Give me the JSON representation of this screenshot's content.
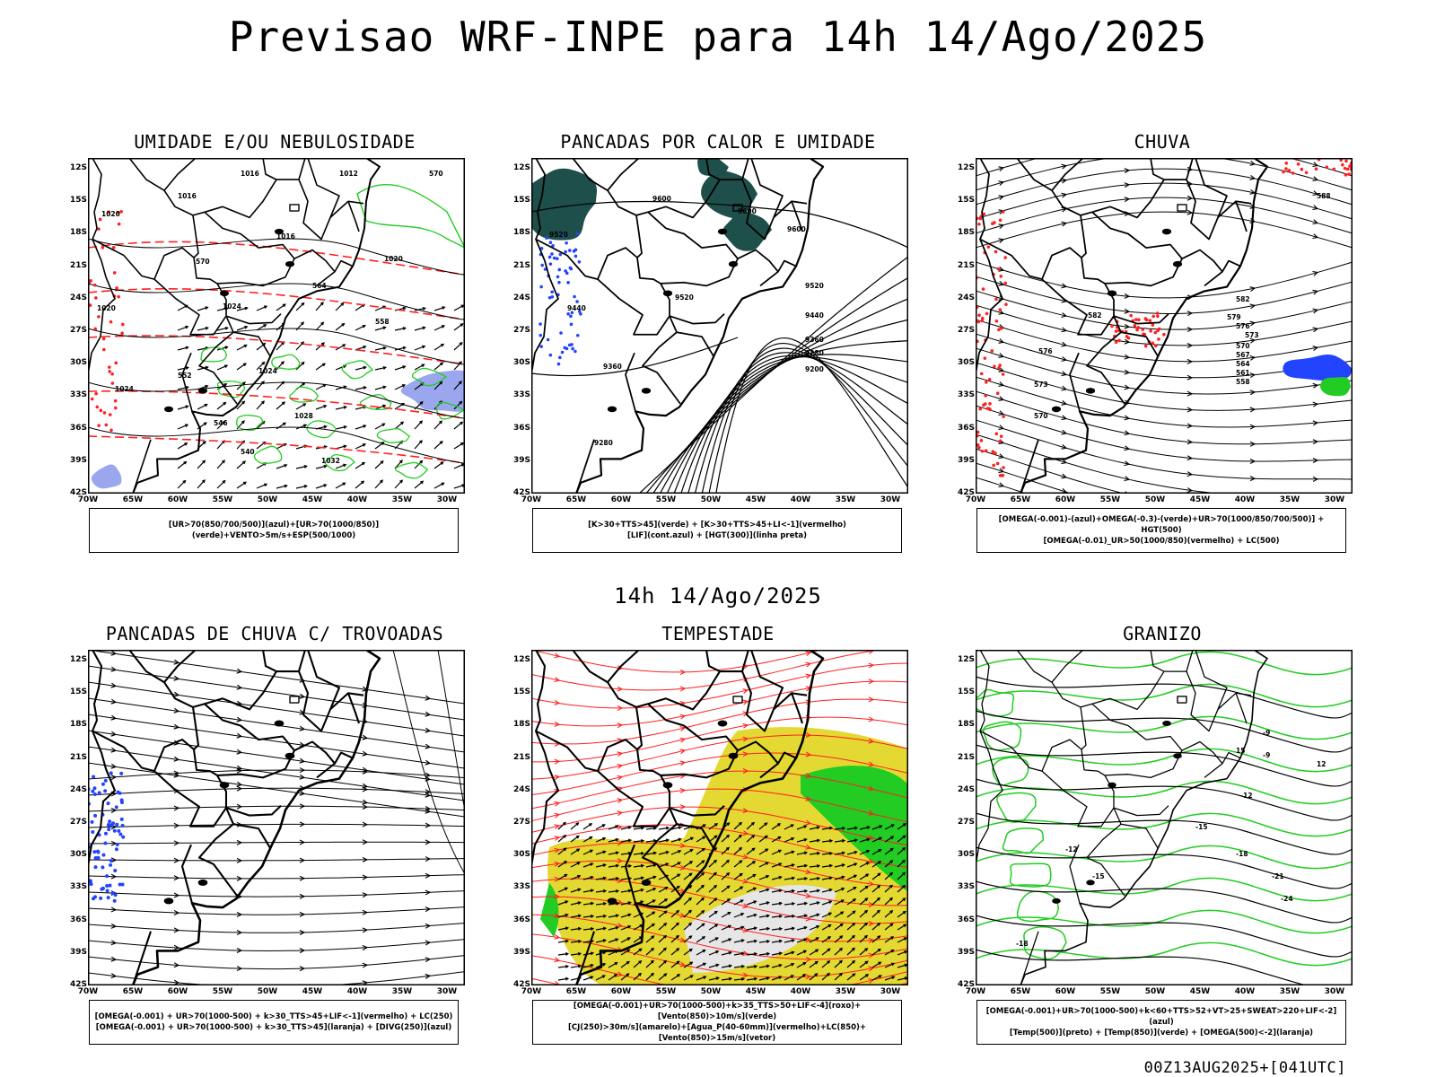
{
  "title": "Previsao WRF-INPE  para 14h 14/Ago/2025",
  "mid_title": "14h 14/Ago/2025",
  "footer": "00Z13AUG2025+[041UTC]",
  "lat_ticks": [
    "12S",
    "15S",
    "18S",
    "21S",
    "24S",
    "27S",
    "30S",
    "33S",
    "36S",
    "39S",
    "42S"
  ],
  "lon_ticks": [
    "70W",
    "65W",
    "60W",
    "55W",
    "50W",
    "45W",
    "40W",
    "35W",
    "30W"
  ],
  "panels": [
    {
      "title": "UMIDADE E/OU NEBULOSIDADE",
      "legend": [
        "[UR>70(850/700/500)](azul)+[UR>70(1000/850)](verde)+VENTO>5m/s+ESP(500/1000)"
      ],
      "contour_labels": [
        "1016",
        "1016",
        "1020",
        "1020",
        "1024",
        "1024",
        "570",
        "570",
        "564",
        "558",
        "552",
        "546",
        "540",
        "1012",
        "1016",
        "1020",
        "1024",
        "1028",
        "1032"
      ]
    },
    {
      "title": "PANCADAS POR CALOR E UMIDADE",
      "legend": [
        "[K>30+TTS>45](verde) + [K>30+TTS>45+LI<-1](vermelho)",
        "[LIF](cont.azul) + [HGT(300)](linha preta)"
      ],
      "contour_labels": [
        "9600",
        "9600",
        "9600",
        "9520",
        "9520",
        "9520",
        "9440",
        "9440",
        "9360",
        "9360",
        "9280",
        "9280",
        "9200"
      ]
    },
    {
      "title": "CHUVA",
      "legend": [
        "[OMEGA(-0.001)-(azul)+OMEGA(-0.3)-(verde)+UR>70(1000/850/700/500)] + HGT(500)",
        "[OMEGA(-0.01)_UR>50(1000/850)(vermelho) + LC(500)"
      ],
      "contour_labels": [
        "588",
        "582",
        "579",
        "576",
        "573",
        "570",
        "567",
        "564",
        "561",
        "558",
        "582",
        "576",
        "573",
        "570"
      ]
    },
    {
      "title": "PANCADAS DE CHUVA C/ TROVOADAS",
      "legend": [
        "[OMEGA(-0.001) + UR>70(1000-500) + k>30_TTS>45+LIF<-1](vermelho) + LC(250)",
        "[OMEGA(-0.001) + UR>70(1000-500) + k>30_TTS>45](laranja) + [DIVG(250)](azul)"
      ],
      "contour_labels": []
    },
    {
      "title": "TEMPESTADE",
      "legend": [
        "[OMEGA(-0.001)+UR>70(1000-500)+k>35_TTS>50+LIF<-4](roxo)+[Vento(850)>10m/s](verde)",
        "[CJ(250)>30m/s](amarelo)+[Agua_P(40-60mm)](vermelho)+LC(850)+[Vento(850)>15m/s](vetor)"
      ],
      "contour_labels": []
    },
    {
      "title": "GRANIZO",
      "legend": [
        "[OMEGA(-0.001)+UR>70(1000-500)+k<60+TTS>52+VT>25+SWEAT>220+LIF<-2](azul)",
        "[Temp(500)](preto) + [Temp(850)](verde) + [OMEGA(500)<-2](laranja)"
      ],
      "contour_labels": [
        "-9",
        "-9",
        "-12",
        "-12",
        "-15",
        "-15",
        "-18",
        "-18",
        "-21",
        "-24",
        "15",
        "12"
      ]
    }
  ],
  "colors": {
    "coast": "#000000",
    "red": "#ff2020",
    "green": "#22cc22",
    "blue": "#2244ff",
    "darkgreen": "#1e4f4a",
    "yellow": "#e4d832",
    "lightblue": "#9aa6ee",
    "lightgray": "#e6e6e6"
  }
}
